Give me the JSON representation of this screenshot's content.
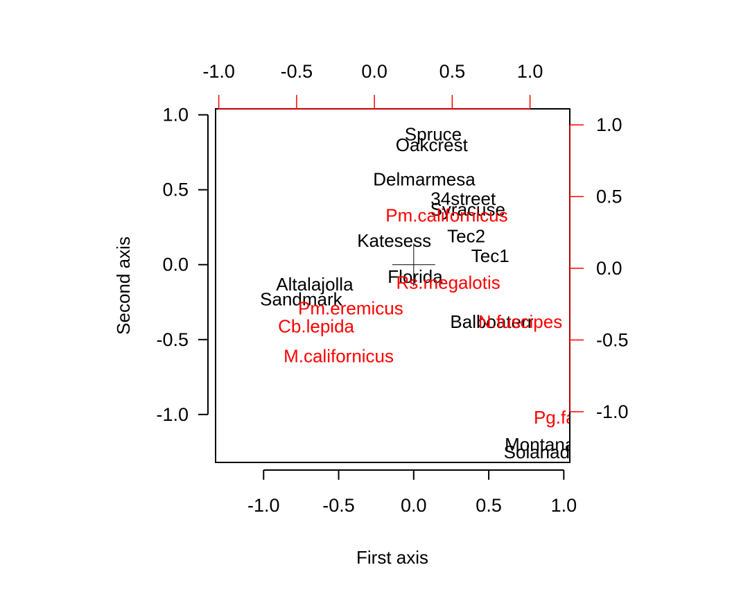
{
  "chart_data": {
    "type": "scatter",
    "xlabel": "First axis",
    "ylabel": "Second axis",
    "xlim": [
      -1.32,
      1.04
    ],
    "ylim": [
      -1.32,
      1.04
    ],
    "grid": false,
    "colors": {
      "sites": "#000000",
      "species": "#ff0000"
    },
    "primary_axes": {
      "x_ticks": [
        -1.0,
        -0.5,
        0.0,
        0.5,
        1.0
      ],
      "x_tick_labels": [
        "-1.0",
        "-0.5",
        "0.0",
        "0.5",
        "1.0"
      ],
      "y_ticks": [
        -1.0,
        -0.5,
        0.0,
        0.5,
        1.0
      ],
      "y_tick_labels": [
        "-1.0",
        "-0.5",
        "0.0",
        "0.5",
        "1.0"
      ]
    },
    "secondary_axes": {
      "xlim": [
        -1.0207,
        1.2556
      ],
      "ylim": [
        -1.3536,
        1.1117
      ],
      "x_ticks": [
        -1.0,
        -0.5,
        0.0,
        0.5,
        1.0
      ],
      "x_tick_labels": [
        "-1.0",
        "-0.5",
        "0.0",
        "0.5",
        "1.0"
      ],
      "y_ticks": [
        -1.0,
        -0.5,
        0.0,
        0.5,
        1.0
      ],
      "y_tick_labels": [
        "-1.0",
        "-0.5",
        "0.0",
        "0.5",
        "1.0"
      ]
    },
    "origin_marker": {
      "x": 0.0,
      "y": 0.0
    },
    "series": [
      {
        "name": "sites",
        "points": [
          {
            "label": "Spruce",
            "x": 0.13,
            "y": 0.87
          },
          {
            "label": "Oakcrest",
            "x": 0.12,
            "y": 0.8
          },
          {
            "label": "Delmarmesa",
            "x": 0.07,
            "y": 0.57
          },
          {
            "label": "34street",
            "x": 0.33,
            "y": 0.44
          },
          {
            "label": "Syracuse",
            "x": 0.36,
            "y": 0.37
          },
          {
            "label": "Tec2",
            "x": 0.35,
            "y": 0.19
          },
          {
            "label": "Katesess",
            "x": -0.13,
            "y": 0.16
          },
          {
            "label": "Tec1",
            "x": 0.51,
            "y": 0.06
          },
          {
            "label": "Florida",
            "x": 0.01,
            "y": -0.08
          },
          {
            "label": "Altalajolla",
            "x": -0.66,
            "y": -0.13
          },
          {
            "label": "Sandmark",
            "x": -0.75,
            "y": -0.23
          },
          {
            "label": "Balboaterr",
            "x": 0.52,
            "y": -0.38
          },
          {
            "label": "Montana",
            "x": 0.84,
            "y": -1.2
          },
          {
            "label": "Solanadr",
            "x": 0.84,
            "y": -1.25
          }
        ]
      },
      {
        "name": "species",
        "points": [
          {
            "label": "Pm.californicus",
            "x": 0.22,
            "y": 0.33
          },
          {
            "label": "Rs.megalotis",
            "x": 0.23,
            "y": -0.12
          },
          {
            "label": "Pm.eremicus",
            "x": -0.42,
            "y": -0.29
          },
          {
            "label": "Cb.lepida",
            "x": -0.65,
            "y": -0.41
          },
          {
            "label": "N.fuscipes",
            "x": 0.71,
            "y": -0.38
          },
          {
            "label": "M.californicus",
            "x": -0.5,
            "y": -0.61
          },
          {
            "label": "Pg.fallax",
            "x": 1.03,
            "y": -1.02
          }
        ]
      }
    ]
  }
}
